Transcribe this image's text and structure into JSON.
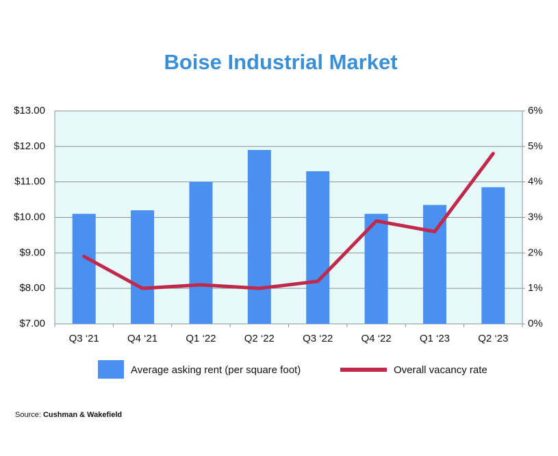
{
  "chart_data": {
    "type": "bar_line",
    "title": "Boise Industrial Market",
    "categories": [
      "Q3 ‘21",
      "Q4 ‘21",
      "Q1 ‘22",
      "Q2 ‘22",
      "Q3 ‘22",
      "Q4 ‘22",
      "Q1 ‘23",
      "Q2 ‘23"
    ],
    "series": [
      {
        "name": "Average asking rent (per square foot)",
        "type": "bar",
        "color": "#4a90f0",
        "values": [
          10.1,
          10.2,
          11.0,
          11.9,
          11.3,
          10.1,
          10.35,
          10.85
        ]
      },
      {
        "name": "Overall vacancy rate",
        "type": "line",
        "axis": "y2",
        "color": "#c0294a",
        "values": [
          1.9,
          1.0,
          1.1,
          1.0,
          1.2,
          2.9,
          2.6,
          4.8
        ]
      }
    ],
    "ylim": [
      7,
      13
    ],
    "yticks": [
      {
        "value": 7,
        "label": "$7.00"
      },
      {
        "value": 8,
        "label": "$8.00"
      },
      {
        "value": 9,
        "label": "$9.00"
      },
      {
        "value": 10,
        "label": "$10.00"
      },
      {
        "value": 11,
        "label": "$11.00"
      },
      {
        "value": 12,
        "label": "$12.00"
      },
      {
        "value": 13,
        "label": "$13.00"
      }
    ],
    "y2lim": [
      0,
      6
    ],
    "y2ticks": [
      {
        "value": 0,
        "label": "0%"
      },
      {
        "value": 1,
        "label": "1%"
      },
      {
        "value": 2,
        "label": "2%"
      },
      {
        "value": 3,
        "label": "3%"
      },
      {
        "value": 4,
        "label": "4%"
      },
      {
        "value": 5,
        "label": "5%"
      },
      {
        "value": 6,
        "label": "6%"
      }
    ],
    "grid": true,
    "legend": "bottom",
    "source_label": "Source:",
    "source": "Cushman & Wakefield"
  }
}
